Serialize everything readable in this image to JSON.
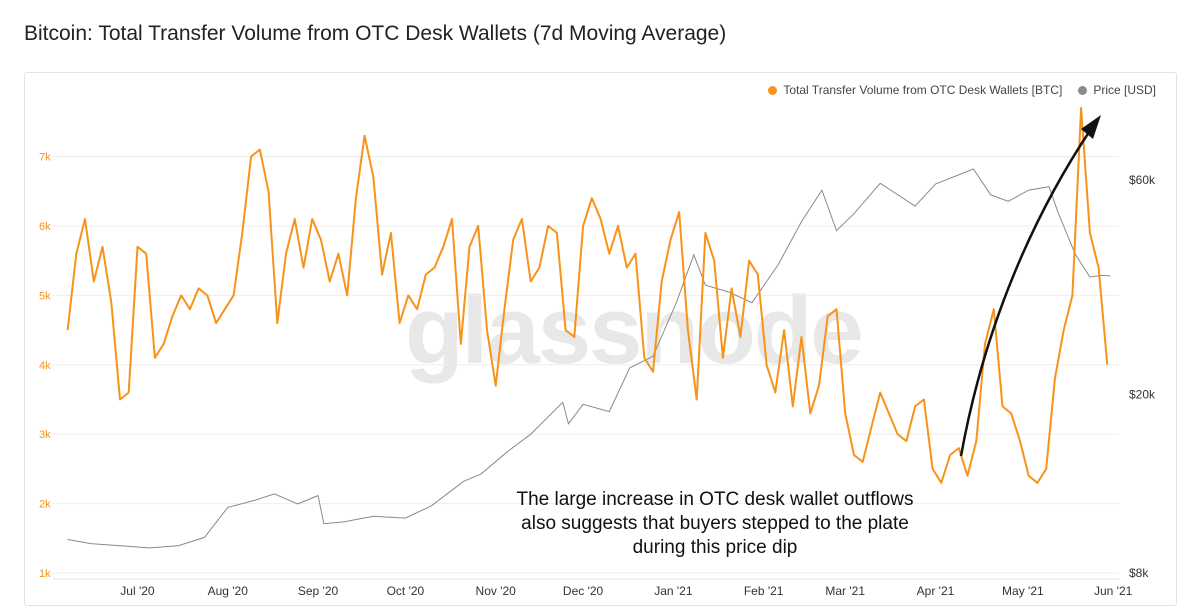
{
  "title": "Bitcoin: Total Transfer Volume from OTC Desk Wallets (7d Moving Average)",
  "watermark": "glassnode",
  "annotation": [
    "The large increase in OTC desk wallet outflows",
    "also suggests that buyers stepped to the plate",
    "during this price dip"
  ],
  "colors": {
    "volume": "#f7931a",
    "price": "#8a8a8a",
    "arrow": "#111111"
  },
  "chart_data": {
    "type": "line",
    "legend": [
      {
        "name": "Total Transfer Volume from OTC Desk Wallets [BTC]",
        "color": "#f7931a"
      },
      {
        "name": "Price [USD]",
        "color": "#8a8a8a"
      }
    ],
    "legend_position": "top-right",
    "x_ticks": [
      "Jul '20",
      "Aug '20",
      "Sep '20",
      "Oct '20",
      "Nov '20",
      "Dec '20",
      "Jan '21",
      "Feb '21",
      "Mar '21",
      "Apr '21",
      "May '21",
      "Jun '21"
    ],
    "y_left_ticks": [
      "1k",
      "2k",
      "3k",
      "4k",
      "5k",
      "6k",
      "7k"
    ],
    "y_left_range": [
      1000,
      7800
    ],
    "y_right_ticks": [
      "$8k",
      "$20k",
      "$60k"
    ],
    "y_right_scale": "log",
    "y_right_range": [
      8000,
      90000
    ],
    "grid": "horizontal",
    "series": [
      {
        "name": "Total Transfer Volume from OTC Desk Wallets [BTC]",
        "axis": "left",
        "x": [
          "2020-06-07",
          "2020-06-10",
          "2020-06-13",
          "2020-06-16",
          "2020-06-19",
          "2020-06-22",
          "2020-06-25",
          "2020-06-28",
          "2020-07-01",
          "2020-07-04",
          "2020-07-07",
          "2020-07-10",
          "2020-07-13",
          "2020-07-16",
          "2020-07-19",
          "2020-07-22",
          "2020-07-25",
          "2020-07-28",
          "2020-07-31",
          "2020-08-03",
          "2020-08-06",
          "2020-08-09",
          "2020-08-12",
          "2020-08-15",
          "2020-08-18",
          "2020-08-21",
          "2020-08-24",
          "2020-08-27",
          "2020-08-30",
          "2020-09-02",
          "2020-09-05",
          "2020-09-08",
          "2020-09-11",
          "2020-09-14",
          "2020-09-17",
          "2020-09-20",
          "2020-09-23",
          "2020-09-26",
          "2020-09-29",
          "2020-10-02",
          "2020-10-05",
          "2020-10-08",
          "2020-10-11",
          "2020-10-14",
          "2020-10-17",
          "2020-10-20",
          "2020-10-23",
          "2020-10-26",
          "2020-10-29",
          "2020-11-01",
          "2020-11-04",
          "2020-11-07",
          "2020-11-10",
          "2020-11-13",
          "2020-11-16",
          "2020-11-19",
          "2020-11-22",
          "2020-11-25",
          "2020-11-28",
          "2020-12-01",
          "2020-12-04",
          "2020-12-07",
          "2020-12-10",
          "2020-12-13",
          "2020-12-16",
          "2020-12-19",
          "2020-12-22",
          "2020-12-25",
          "2020-12-28",
          "2020-12-31",
          "2021-01-03",
          "2021-01-06",
          "2021-01-09",
          "2021-01-12",
          "2021-01-15",
          "2021-01-18",
          "2021-01-21",
          "2021-01-24",
          "2021-01-27",
          "2021-01-30",
          "2021-02-02",
          "2021-02-05",
          "2021-02-08",
          "2021-02-11",
          "2021-02-14",
          "2021-02-17",
          "2021-02-20",
          "2021-02-23",
          "2021-02-26",
          "2021-03-01",
          "2021-03-04",
          "2021-03-07",
          "2021-03-10",
          "2021-03-13",
          "2021-03-16",
          "2021-03-19",
          "2021-03-22",
          "2021-03-25",
          "2021-03-28",
          "2021-03-31",
          "2021-04-03",
          "2021-04-06",
          "2021-04-09",
          "2021-04-12",
          "2021-04-15",
          "2021-04-18",
          "2021-04-21",
          "2021-04-24",
          "2021-04-27",
          "2021-04-30",
          "2021-05-03",
          "2021-05-06",
          "2021-05-09",
          "2021-05-12",
          "2021-05-15",
          "2021-05-18",
          "2021-05-21",
          "2021-05-24",
          "2021-05-27",
          "2021-05-30"
        ],
        "values": [
          4500,
          5600,
          6100,
          5200,
          5700,
          4900,
          3500,
          3600,
          5700,
          5600,
          4100,
          4300,
          4700,
          5000,
          4800,
          5100,
          5000,
          4600,
          4800,
          5000,
          5900,
          7000,
          7100,
          6500,
          4600,
          5600,
          6100,
          5400,
          6100,
          5800,
          5200,
          5600,
          5000,
          6400,
          7300,
          6700,
          5300,
          5900,
          4600,
          5000,
          4800,
          5300,
          5400,
          5700,
          6100,
          4300,
          5700,
          6000,
          4500,
          3700,
          4800,
          5800,
          6100,
          5200,
          5400,
          6000,
          5900,
          4500,
          4400,
          6000,
          6400,
          6100,
          5600,
          6000,
          5400,
          5600,
          4100,
          3900,
          5200,
          5800,
          6200,
          4500,
          3500,
          5900,
          5500,
          4100,
          5100,
          4400,
          5500,
          5300,
          4000,
          3600,
          4500,
          3400,
          4400,
          3300,
          3700,
          4700,
          4800,
          3300,
          2700,
          2600,
          3100,
          3600,
          3300,
          3000,
          2900,
          3400,
          3500,
          2500,
          2300,
          2700,
          2800,
          2400,
          2900,
          4300,
          4800,
          3400,
          3300,
          2900,
          2400,
          2300,
          2500,
          3800,
          4500,
          5000,
          7700,
          5900,
          5400,
          4000
        ]
      },
      {
        "name": "Price [USD]",
        "axis": "right",
        "x": [
          "2020-06-07",
          "2020-06-15",
          "2020-06-25",
          "2020-07-05",
          "2020-07-15",
          "2020-07-24",
          "2020-08-01",
          "2020-08-10",
          "2020-08-17",
          "2020-08-25",
          "2020-09-01",
          "2020-09-03",
          "2020-09-10",
          "2020-09-20",
          "2020-10-01",
          "2020-10-10",
          "2020-10-21",
          "2020-10-27",
          "2020-11-05",
          "2020-11-13",
          "2020-11-24",
          "2020-11-26",
          "2020-12-01",
          "2020-12-10",
          "2020-12-17",
          "2020-12-25",
          "2021-01-02",
          "2021-01-08",
          "2021-01-12",
          "2021-01-20",
          "2021-01-28",
          "2021-02-06",
          "2021-02-14",
          "2021-02-21",
          "2021-02-26",
          "2021-03-04",
          "2021-03-13",
          "2021-03-25",
          "2021-04-01",
          "2021-04-14",
          "2021-04-20",
          "2021-04-26",
          "2021-05-03",
          "2021-05-10",
          "2021-05-13",
          "2021-05-19",
          "2021-05-24",
          "2021-05-28",
          "2021-05-31"
        ],
        "values": [
          9500,
          9300,
          9200,
          9100,
          9200,
          9600,
          11200,
          11600,
          12000,
          11400,
          11900,
          10300,
          10400,
          10700,
          10600,
          11300,
          12800,
          13300,
          14900,
          16300,
          19200,
          17200,
          19000,
          18300,
          22900,
          24300,
          32000,
          40900,
          35000,
          33800,
          32000,
          38900,
          48500,
          57000,
          46300,
          50500,
          59000,
          52500,
          58800,
          63500,
          55600,
          53800,
          57000,
          58000,
          51000,
          41000,
          36500,
          36800,
          36700
        ]
      }
    ]
  }
}
